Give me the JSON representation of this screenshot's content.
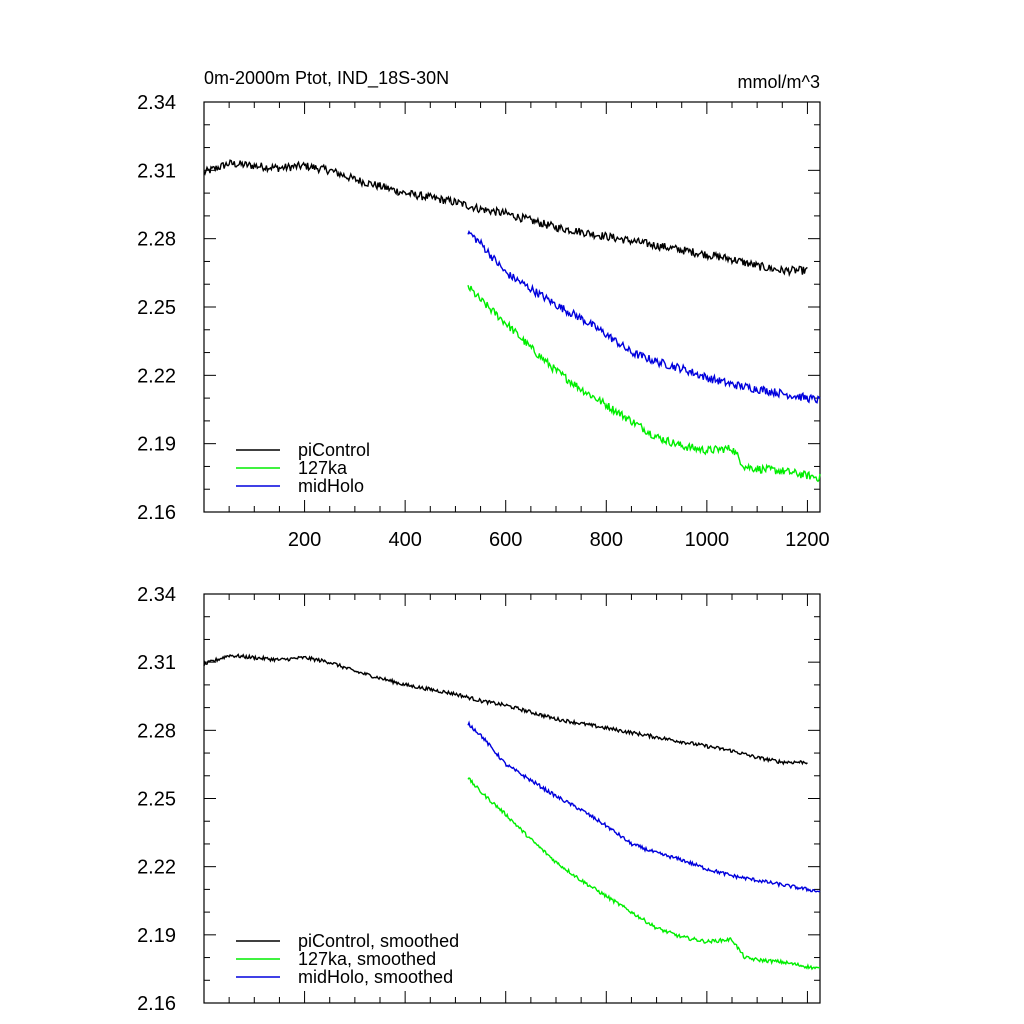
{
  "figure": {
    "title_left": "0m-2000m Ptot, IND_18S-30N",
    "title_right": "mmol/m^3"
  },
  "chart_data": [
    {
      "type": "line",
      "panel": "top",
      "title": "0m-2000m Ptot, IND_18S-30N",
      "units": "mmol/m^3",
      "xlim": [
        0,
        1225
      ],
      "ylim": [
        2.16,
        2.34
      ],
      "xticks": [
        200,
        400,
        600,
        800,
        1000,
        1200
      ],
      "xtick_labels": [
        "200",
        "400",
        "600",
        "800",
        "1000",
        "1200"
      ],
      "yticks": [
        2.16,
        2.19,
        2.22,
        2.25,
        2.28,
        2.31,
        2.34
      ],
      "ytick_labels": [
        "2.16",
        "2.19",
        "2.22",
        "2.25",
        "2.28",
        "2.31",
        "2.34"
      ],
      "legend_position": "bottom-left",
      "noise": 0.0018,
      "series": [
        {
          "name": "piControl",
          "color": "#000000",
          "x": [
            0,
            50,
            100,
            150,
            200,
            250,
            300,
            350,
            400,
            450,
            500,
            550,
            600,
            650,
            700,
            750,
            800,
            850,
            900,
            950,
            1000,
            1050,
            1100,
            1150,
            1200
          ],
          "y": [
            2.309,
            2.313,
            2.312,
            2.311,
            2.312,
            2.31,
            2.306,
            2.303,
            2.3,
            2.298,
            2.296,
            2.293,
            2.291,
            2.288,
            2.285,
            2.283,
            2.281,
            2.279,
            2.277,
            2.275,
            2.273,
            2.271,
            2.268,
            2.266,
            2.266
          ]
        },
        {
          "name": "127ka",
          "color": "#00ee00",
          "x": [
            525,
            550,
            600,
            650,
            700,
            750,
            800,
            850,
            900,
            950,
            1000,
            1050,
            1075,
            1100,
            1150,
            1200,
            1225
          ],
          "y": [
            2.259,
            2.253,
            2.243,
            2.232,
            2.222,
            2.214,
            2.207,
            2.2,
            2.193,
            2.189,
            2.187,
            2.188,
            2.18,
            2.179,
            2.178,
            2.176,
            2.175
          ]
        },
        {
          "name": "midHolo",
          "color": "#0000dd",
          "x": [
            525,
            550,
            600,
            650,
            700,
            750,
            800,
            850,
            900,
            950,
            1000,
            1050,
            1100,
            1150,
            1200,
            1225
          ],
          "y": [
            2.283,
            2.278,
            2.265,
            2.258,
            2.251,
            2.245,
            2.238,
            2.23,
            2.226,
            2.223,
            2.219,
            2.216,
            2.214,
            2.212,
            2.21,
            2.209
          ]
        }
      ]
    },
    {
      "type": "line",
      "panel": "bottom",
      "xlim": [
        0,
        1225
      ],
      "ylim": [
        2.16,
        2.34
      ],
      "xticks": [
        200,
        400,
        600,
        800,
        1000,
        1200
      ],
      "yticks": [
        2.16,
        2.19,
        2.22,
        2.25,
        2.28,
        2.31,
        2.34
      ],
      "ytick_labels": [
        "2.16",
        "2.19",
        "2.22",
        "2.25",
        "2.28",
        "2.31",
        "2.34"
      ],
      "legend_position": "bottom-left",
      "noise": 0.0008,
      "series": [
        {
          "name": "piControl, smoothed",
          "color": "#000000",
          "x": [
            0,
            50,
            100,
            150,
            200,
            250,
            300,
            350,
            400,
            450,
            500,
            550,
            600,
            650,
            700,
            750,
            800,
            850,
            900,
            950,
            1000,
            1050,
            1100,
            1150,
            1200
          ],
          "y": [
            2.309,
            2.313,
            2.312,
            2.311,
            2.312,
            2.31,
            2.306,
            2.303,
            2.3,
            2.298,
            2.296,
            2.293,
            2.291,
            2.288,
            2.285,
            2.283,
            2.281,
            2.279,
            2.277,
            2.275,
            2.273,
            2.271,
            2.268,
            2.266,
            2.266
          ]
        },
        {
          "name": "127ka, smoothed",
          "color": "#00ee00",
          "x": [
            525,
            550,
            600,
            650,
            700,
            750,
            800,
            850,
            900,
            950,
            1000,
            1050,
            1075,
            1100,
            1150,
            1200,
            1225
          ],
          "y": [
            2.259,
            2.253,
            2.243,
            2.232,
            2.222,
            2.214,
            2.207,
            2.2,
            2.193,
            2.189,
            2.187,
            2.188,
            2.18,
            2.179,
            2.178,
            2.176,
            2.175
          ]
        },
        {
          "name": "midHolo, smoothed",
          "color": "#0000dd",
          "x": [
            525,
            550,
            600,
            650,
            700,
            750,
            800,
            850,
            900,
            950,
            1000,
            1050,
            1100,
            1150,
            1200,
            1225
          ],
          "y": [
            2.283,
            2.278,
            2.265,
            2.258,
            2.251,
            2.245,
            2.238,
            2.23,
            2.226,
            2.223,
            2.219,
            2.216,
            2.214,
            2.212,
            2.21,
            2.209
          ]
        }
      ]
    }
  ]
}
